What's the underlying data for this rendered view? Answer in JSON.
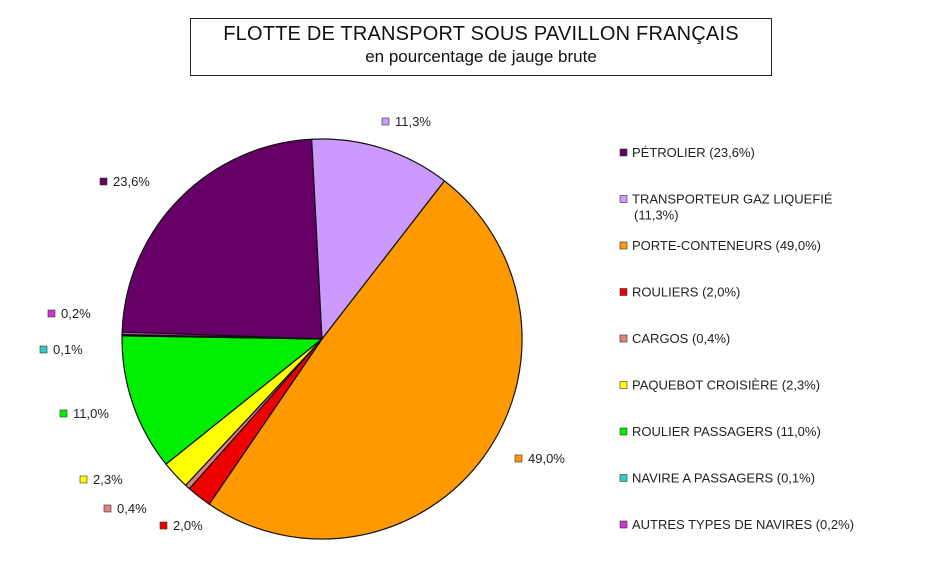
{
  "chart_data": {
    "type": "pie",
    "title": "FLOTTE DE TRANSPORT SOUS PAVILLON FRANÇAIS",
    "subtitle": "en pourcentage de jauge brute",
    "legend_position": "right",
    "slices": [
      {
        "legend": "PÉTROLIER (23,6%)",
        "value_label": "23,6%",
        "value": 23.6,
        "color": "#660066"
      },
      {
        "legend": "TRANSPORTEUR GAZ LIQUEFIÉ (11,3%)",
        "legend_lines": [
          "TRANSPORTEUR GAZ LIQUEFIÉ",
          "(11,3%)"
        ],
        "value_label": "11,3%",
        "value": 11.3,
        "color": "#cc99ff"
      },
      {
        "legend": "PORTE-CONTENEURS  (49,0%)",
        "value_label": "49,0%",
        "value": 49.0,
        "color": "#ff9900"
      },
      {
        "legend": "ROULIERS (2,0%)",
        "value_label": "2,0%",
        "value": 2.0,
        "color": "#ee0000"
      },
      {
        "legend": "CARGOS (0,4%)",
        "value_label": "0,4%",
        "value": 0.4,
        "color": "#e08080"
      },
      {
        "legend": "PAQUEBOT CROISIÈRE (2,3%)",
        "value_label": "2,3%",
        "value": 2.3,
        "color": "#ffff00"
      },
      {
        "legend": "ROULIER PASSAGERS (11,0%)",
        "value_label": "11,0%",
        "value": 11.0,
        "color": "#00ee00"
      },
      {
        "legend": "NAVIRE A PASSAGERS (0,1%)",
        "value_label": "0,1%",
        "value": 0.1,
        "color": "#33cccc"
      },
      {
        "legend": "AUTRES TYPES DE NAVIRES (0,2%)",
        "value_label": "0,2%",
        "value": 0.2,
        "color": "#cc33cc"
      }
    ]
  }
}
